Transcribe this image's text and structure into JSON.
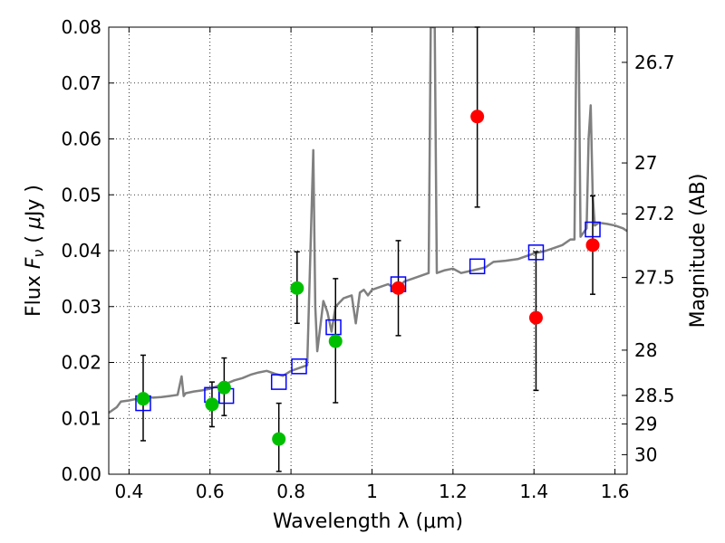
{
  "chart_data": {
    "type": "scatter",
    "xlabel": "Wavelength  λ (μm)",
    "ylabel_parts": [
      "Flux  ",
      "F",
      "ν",
      "  ( ",
      "μ",
      "Jy )"
    ],
    "ylabel_right": "Magnitude (AB)",
    "xlim": [
      0.35,
      1.63
    ],
    "ylim": [
      0.0,
      0.08
    ],
    "grid": true,
    "x_ticks": [
      0.4,
      0.6,
      0.8,
      1.0,
      1.2,
      1.4,
      1.6
    ],
    "x_tick_labels": [
      "0.4",
      "0.6",
      "0.8",
      "1",
      "1.2",
      "1.4",
      "1.6"
    ],
    "y_ticks": [
      0.0,
      0.01,
      0.02,
      0.03,
      0.04,
      0.05,
      0.06,
      0.07,
      0.08
    ],
    "y_tick_labels": [
      "0.00",
      "0.01",
      "0.02",
      "0.03",
      "0.04",
      "0.05",
      "0.06",
      "0.07",
      "0.08"
    ],
    "right_ticks": [
      {
        "flux": 0.0737,
        "label": "26.7"
      },
      {
        "flux": 0.0557,
        "label": "27"
      },
      {
        "flux": 0.0466,
        "label": "27.2"
      },
      {
        "flux": 0.0352,
        "label": "27.5"
      },
      {
        "flux": 0.0222,
        "label": "28"
      },
      {
        "flux": 0.0141,
        "label": "28.5"
      },
      {
        "flux": 0.009,
        "label": "29"
      },
      {
        "flux": 0.0035,
        "label": "30"
      }
    ],
    "model_spectrum": {
      "color": "#808080",
      "x": [
        0.35,
        0.37,
        0.38,
        0.4,
        0.42,
        0.44,
        0.46,
        0.48,
        0.5,
        0.52,
        0.53,
        0.535,
        0.54,
        0.56,
        0.58,
        0.6,
        0.62,
        0.64,
        0.66,
        0.68,
        0.7,
        0.72,
        0.74,
        0.76,
        0.78,
        0.8,
        0.82,
        0.84,
        0.855,
        0.86,
        0.865,
        0.87,
        0.88,
        0.89,
        0.9,
        0.91,
        0.93,
        0.95,
        0.96,
        0.97,
        0.98,
        0.99,
        1.0,
        1.02,
        1.04,
        1.06,
        1.08,
        1.1,
        1.12,
        1.14,
        1.145,
        1.15,
        1.155,
        1.16,
        1.18,
        1.2,
        1.22,
        1.25,
        1.28,
        1.3,
        1.33,
        1.36,
        1.4,
        1.43,
        1.45,
        1.47,
        1.49,
        1.5,
        1.505,
        1.51,
        1.515,
        1.52,
        1.53,
        1.535,
        1.54,
        1.545,
        1.55,
        1.56,
        1.58,
        1.6,
        1.62,
        1.63
      ],
      "y": [
        0.011,
        0.012,
        0.013,
        0.0132,
        0.0135,
        0.0138,
        0.0137,
        0.0138,
        0.014,
        0.0142,
        0.0175,
        0.014,
        0.0145,
        0.0148,
        0.015,
        0.0153,
        0.0158,
        0.0162,
        0.0168,
        0.0172,
        0.0178,
        0.0182,
        0.0185,
        0.018,
        0.0176,
        0.0185,
        0.019,
        0.0195,
        0.058,
        0.03,
        0.022,
        0.025,
        0.031,
        0.029,
        0.0255,
        0.03,
        0.0315,
        0.032,
        0.027,
        0.0325,
        0.033,
        0.032,
        0.033,
        0.0335,
        0.034,
        0.033,
        0.0345,
        0.035,
        0.0355,
        0.036,
        0.08,
        0.08,
        0.08,
        0.036,
        0.0365,
        0.0368,
        0.036,
        0.0365,
        0.037,
        0.038,
        0.0382,
        0.0385,
        0.0395,
        0.04,
        0.0405,
        0.041,
        0.042,
        0.042,
        0.08,
        0.08,
        0.0425,
        0.043,
        0.044,
        0.06,
        0.066,
        0.05,
        0.0445,
        0.045,
        0.0448,
        0.0445,
        0.044,
        0.0435
      ]
    },
    "series": [
      {
        "color": "#00bf00",
        "marker": "circle",
        "points": [
          {
            "x": 0.435,
            "y": 0.0135,
            "err": [
              0.006,
              0.0213
            ]
          },
          {
            "x": 0.605,
            "y": 0.0125,
            "err": [
              0.0085,
              0.0165
            ]
          },
          {
            "x": 0.635,
            "y": 0.0155,
            "err": [
              0.0105,
              0.0208
            ]
          },
          {
            "x": 0.77,
            "y": 0.0063,
            "err": [
              0.0005,
              0.0127
            ]
          },
          {
            "x": 0.815,
            "y": 0.0333,
            "err": [
              0.027,
              0.0398
            ]
          },
          {
            "x": 0.91,
            "y": 0.0238,
            "err": [
              0.0128,
              0.035
            ]
          }
        ]
      },
      {
        "color": "#ff0000",
        "marker": "circle",
        "points": [
          {
            "x": 1.065,
            "y": 0.0333,
            "err": [
              0.0248,
              0.0418
            ]
          },
          {
            "x": 1.26,
            "y": 0.064,
            "err": [
              0.0478,
              0.08
            ]
          },
          {
            "x": 1.405,
            "y": 0.028,
            "err": [
              0.015,
              0.0398
            ]
          },
          {
            "x": 1.545,
            "y": 0.041,
            "err": [
              0.0322,
              0.0498
            ]
          }
        ]
      },
      {
        "color": "#0000ff",
        "marker": "open-square",
        "points": [
          {
            "x": 0.435,
            "y": 0.0127
          },
          {
            "x": 0.605,
            "y": 0.0142
          },
          {
            "x": 0.64,
            "y": 0.014
          },
          {
            "x": 0.77,
            "y": 0.0165
          },
          {
            "x": 0.82,
            "y": 0.0193
          },
          {
            "x": 0.905,
            "y": 0.0263
          },
          {
            "x": 1.065,
            "y": 0.034
          },
          {
            "x": 1.26,
            "y": 0.0372
          },
          {
            "x": 1.405,
            "y": 0.0397
          },
          {
            "x": 1.545,
            "y": 0.0438
          }
        ]
      }
    ]
  }
}
